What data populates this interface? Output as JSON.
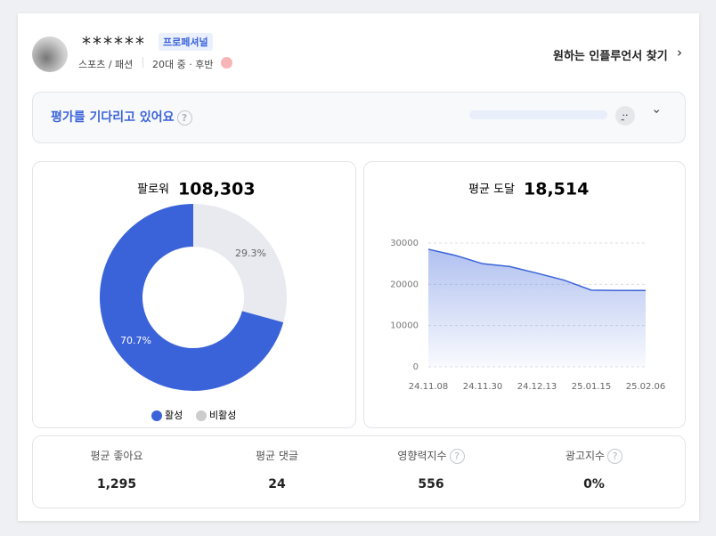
{
  "profile": {
    "name": "******",
    "badge": "프로페셔널",
    "category": "스포츠 / 패션",
    "age": "20대 중 · 후반"
  },
  "link": "원하는 인플루언서 찾기",
  "evaluation": {
    "title": "평가를 기다리고 있어요"
  },
  "chart_data": [
    {
      "type": "donut",
      "title": "팔로워",
      "total_label": "108,303",
      "categories": [
        "활성",
        "비활성"
      ],
      "values": [
        70.7,
        29.3
      ],
      "value_labels": [
        "70.7%",
        "29.3%"
      ],
      "colors": [
        "#3b63d9",
        "#e9eaef"
      ]
    },
    {
      "type": "area",
      "title": "평균 도달",
      "total_label": "18,514",
      "categories": [
        "24.11.08",
        null,
        "24.11.30",
        null,
        "24.12.13",
        null,
        "25.01.15",
        null,
        "25.02.06"
      ],
      "values": [
        28500,
        27000,
        25000,
        24300,
        22700,
        21000,
        18600,
        18500,
        18500
      ],
      "color": "#3b63d9",
      "ylim": [
        0,
        30000
      ],
      "yticks": [
        0,
        10000,
        20000,
        30000
      ],
      "grid": true
    }
  ],
  "stats": [
    {
      "label": "평균 좋아요",
      "value": "1,295"
    },
    {
      "label": "평균 댓글",
      "value": "24"
    },
    {
      "label": "영향력지수",
      "value": "556"
    },
    {
      "label": "광고지수",
      "value": "0%"
    }
  ]
}
